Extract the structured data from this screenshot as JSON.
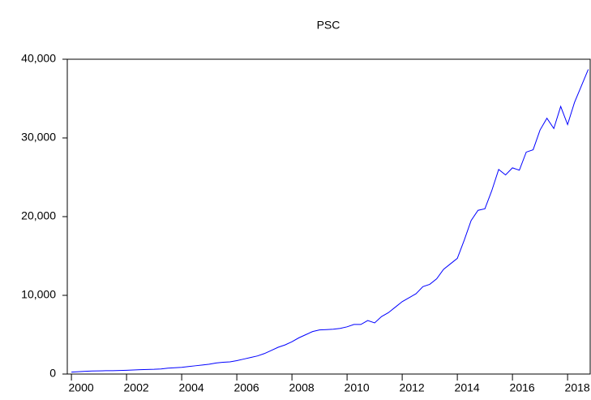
{
  "chart_data": {
    "type": "line",
    "title": "PSC",
    "x": [
      2000,
      2000.25,
      2000.5,
      2000.75,
      2001,
      2001.25,
      2001.5,
      2001.75,
      2002,
      2002.25,
      2002.5,
      2002.75,
      2003,
      2003.25,
      2003.5,
      2003.75,
      2004,
      2004.25,
      2004.5,
      2004.75,
      2005,
      2005.25,
      2005.5,
      2005.75,
      2006,
      2006.25,
      2006.5,
      2006.75,
      2007,
      2007.25,
      2007.5,
      2007.75,
      2008,
      2008.25,
      2008.5,
      2008.75,
      2009,
      2009.25,
      2009.5,
      2009.75,
      2010,
      2010.25,
      2010.5,
      2010.75,
      2011,
      2011.25,
      2011.5,
      2011.75,
      2012,
      2012.25,
      2012.5,
      2012.75,
      2013,
      2013.25,
      2013.5,
      2013.75,
      2014,
      2014.25,
      2014.5,
      2014.75,
      2015,
      2015.25,
      2015.5,
      2015.75,
      2016,
      2016.25,
      2016.5,
      2016.75,
      2017,
      2017.25,
      2017.5,
      2017.75,
      2018,
      2018.25,
      2018.5,
      2018.75
    ],
    "series": [
      {
        "name": "PSC",
        "color": "#0000ff",
        "values": [
          250,
          300,
          350,
          380,
          400,
          420,
          430,
          450,
          480,
          520,
          560,
          580,
          600,
          650,
          750,
          800,
          850,
          950,
          1050,
          1150,
          1250,
          1400,
          1500,
          1550,
          1700,
          1900,
          2100,
          2300,
          2600,
          3000,
          3400,
          3700,
          4100,
          4600,
          5000,
          5400,
          5600,
          5650,
          5700,
          5800,
          6000,
          6300,
          6300,
          6800,
          6500,
          7300,
          7800,
          8500,
          9200,
          9700,
          10200,
          11100,
          11400,
          12100,
          13300,
          14000,
          14700,
          17000,
          19500,
          20800,
          21000,
          23300,
          26000,
          25300,
          26200,
          25900,
          28200,
          28500,
          31000,
          32500,
          31200,
          34000,
          31700,
          34500,
          36600,
          38700
        ]
      }
    ],
    "xlim": [
      1999.85,
      2018.82
    ],
    "xticks": [
      2000,
      2002,
      2004,
      2006,
      2008,
      2010,
      2012,
      2014,
      2016,
      2018
    ],
    "ylim": [
      0,
      40000
    ],
    "yticks": [
      0,
      {
        "value": 10000,
        "label": "10,000"
      },
      {
        "value": 20000,
        "label": "20,000"
      },
      {
        "value": 30000,
        "label": "30,000"
      },
      {
        "value": 40000,
        "label": "40,000"
      }
    ],
    "grid": false
  }
}
